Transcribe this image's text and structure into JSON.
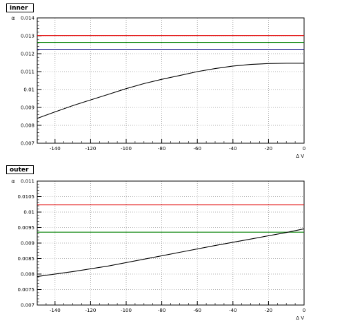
{
  "chart_data": [
    {
      "type": "line",
      "title": "inner",
      "xlabel": "Δ V",
      "ylabel": "α",
      "xlim": [
        -150,
        0
      ],
      "ylim": [
        0.007,
        0.014
      ],
      "x_ticks": [
        -140,
        -120,
        -100,
        -80,
        -60,
        -40,
        -20,
        0
      ],
      "x_tick_labels": [
        "-140",
        "-120",
        "-100",
        "-80",
        "-60",
        "-40",
        "-20",
        "0"
      ],
      "y_ticks": [
        0.007,
        0.008,
        0.009,
        0.01,
        0.011,
        0.012,
        0.013,
        0.014
      ],
      "y_tick_labels": [
        "0.007",
        "0.008",
        "0.009",
        "0.01",
        "0.011",
        "0.012",
        "0.013",
        "0.014"
      ],
      "grid": true,
      "series": [
        {
          "color": "#e00000",
          "x": [
            -150,
            0
          ],
          "y": [
            0.01301,
            0.01301
          ]
        },
        {
          "color": "#008000",
          "x": [
            -150,
            0
          ],
          "y": [
            0.01263,
            0.01263
          ]
        },
        {
          "color": "#000080",
          "x": [
            -150,
            0
          ],
          "y": [
            0.01225,
            0.01225
          ]
        },
        {
          "color": "#000000",
          "x": [
            -150,
            -140,
            -130,
            -120,
            -110,
            -100,
            -90,
            -80,
            -70,
            -60,
            -50,
            -40,
            -30,
            -20,
            -10,
            0
          ],
          "y": [
            0.00839,
            0.00875,
            0.0091,
            0.00942,
            0.00973,
            0.01005,
            0.01033,
            0.01057,
            0.01078,
            0.011,
            0.01117,
            0.01131,
            0.0114,
            0.01145,
            0.01147,
            0.01147
          ]
        }
      ]
    },
    {
      "type": "line",
      "title": "outer",
      "xlabel": "Δ V",
      "ylabel": "α",
      "xlim": [
        -150,
        0
      ],
      "ylim": [
        0.007,
        0.011
      ],
      "x_ticks": [
        -140,
        -120,
        -100,
        -80,
        -60,
        -40,
        -20,
        0
      ],
      "x_tick_labels": [
        "-140",
        "-120",
        "-100",
        "-80",
        "-60",
        "-40",
        "-20",
        "0"
      ],
      "y_ticks": [
        0.007,
        0.0075,
        0.008,
        0.0085,
        0.009,
        0.0095,
        0.01,
        0.0105,
        0.011
      ],
      "y_tick_labels": [
        "0.007",
        "0.0075",
        "0.008",
        "0.0085",
        "0.009",
        "0.0095",
        "0.01",
        "0.0105",
        "0.011"
      ],
      "grid": true,
      "series": [
        {
          "color": "#e00000",
          "x": [
            -150,
            0
          ],
          "y": [
            0.01023,
            0.01023
          ]
        },
        {
          "color": "#008000",
          "x": [
            -150,
            0
          ],
          "y": [
            0.00935,
            0.00935
          ]
        },
        {
          "color": "#000000",
          "x": [
            -150,
            -130,
            -110,
            -90,
            -70,
            -50,
            -30,
            -10,
            0
          ],
          "y": [
            0.00792,
            0.00808,
            0.00826,
            0.00848,
            0.0087,
            0.00892,
            0.00913,
            0.00934,
            0.00946
          ]
        }
      ]
    }
  ]
}
